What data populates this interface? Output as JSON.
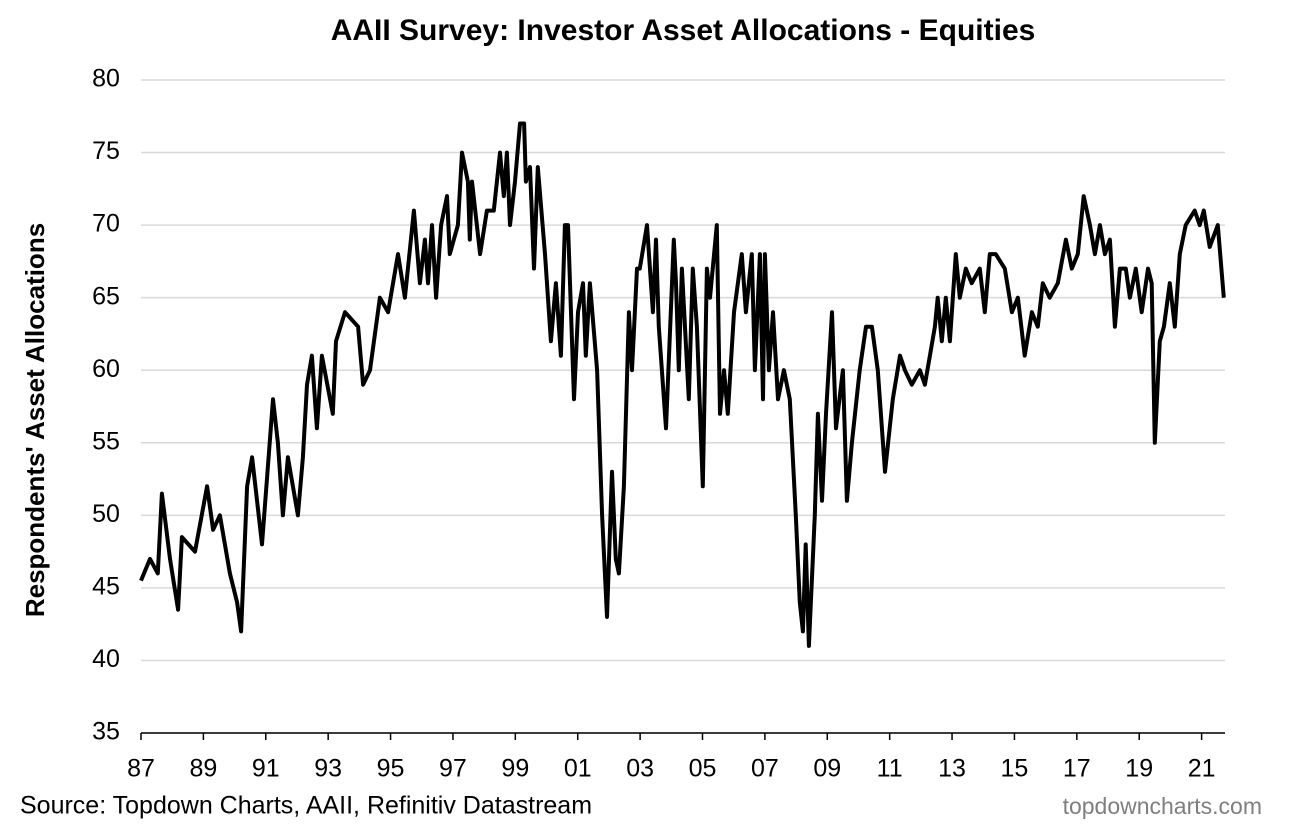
{
  "chart_data": {
    "type": "line",
    "title": "AAII Survey: Investor Asset Allocations - Equities",
    "ylabel": "Respondents' Asset Allocations",
    "source": "Source: Topdown Charts, AAII, Refinitiv Datastream",
    "watermark": "topdowncharts.com",
    "color": "#000000",
    "grid": true,
    "xlim": [
      1987,
      2021.75
    ],
    "ylim": [
      35,
      80
    ],
    "yticks": [
      35,
      40,
      45,
      50,
      55,
      60,
      65,
      70,
      75,
      80
    ],
    "xticks": [
      {
        "value": 1987,
        "label": "87"
      },
      {
        "value": 1989,
        "label": "89"
      },
      {
        "value": 1991,
        "label": "91"
      },
      {
        "value": 1993,
        "label": "93"
      },
      {
        "value": 1995,
        "label": "95"
      },
      {
        "value": 1997,
        "label": "97"
      },
      {
        "value": 1999,
        "label": "99"
      },
      {
        "value": 2001,
        "label": "01"
      },
      {
        "value": 2003,
        "label": "03"
      },
      {
        "value": 2005,
        "label": "05"
      },
      {
        "value": 2007,
        "label": "07"
      },
      {
        "value": 2009,
        "label": "09"
      },
      {
        "value": 2011,
        "label": "11"
      },
      {
        "value": 2013,
        "label": "13"
      },
      {
        "value": 2015,
        "label": "15"
      },
      {
        "value": 2017,
        "label": "17"
      },
      {
        "value": 2019,
        "label": "19"
      },
      {
        "value": 2021,
        "label": "21"
      }
    ],
    "x": [
      1987.0,
      1987.29,
      1987.54,
      1987.67,
      1987.93,
      1988.19,
      1988.31,
      1988.73,
      1989.12,
      1989.31,
      1989.53,
      1989.85,
      1990.08,
      1990.21,
      1990.4,
      1990.56,
      1990.88,
      1991.23,
      1991.39,
      1991.55,
      1991.71,
      1992.03,
      1992.19,
      1992.32,
      1992.48,
      1992.64,
      1992.8,
      1993.15,
      1993.25,
      1993.54,
      1993.96,
      1994.12,
      1994.34,
      1994.66,
      1994.92,
      1995.24,
      1995.46,
      1995.75,
      1995.94,
      1996.1,
      1996.2,
      1996.33,
      1996.46,
      1996.62,
      1996.81,
      1996.9,
      1997.16,
      1997.29,
      1997.48,
      1997.54,
      1997.61,
      1997.87,
      1998.09,
      1998.31,
      1998.51,
      1998.63,
      1998.73,
      1998.83,
      1998.99,
      1999.15,
      1999.28,
      1999.34,
      1999.47,
      1999.6,
      1999.72,
      1999.95,
      2000.14,
      2000.3,
      2000.46,
      2000.59,
      2000.69,
      2000.88,
      2001.01,
      2001.17,
      2001.26,
      2001.39,
      2001.62,
      2001.78,
      2001.94,
      2002.1,
      2002.22,
      2002.32,
      2002.48,
      2002.64,
      2002.74,
      2002.9,
      2002.99,
      2003.22,
      2003.41,
      2003.51,
      2003.6,
      2003.83,
      2004.08,
      2004.15,
      2004.24,
      2004.34,
      2004.56,
      2004.69,
      2004.82,
      2005.01,
      2005.14,
      2005.24,
      2005.46,
      2005.56,
      2005.69,
      2005.81,
      2006.01,
      2006.26,
      2006.39,
      2006.58,
      2006.68,
      2006.84,
      2006.94,
      2007.0,
      2007.13,
      2007.26,
      2007.42,
      2007.61,
      2007.8,
      2007.99,
      2008.12,
      2008.22,
      2008.31,
      2008.41,
      2008.6,
      2008.7,
      2008.83,
      2008.96,
      2009.15,
      2009.28,
      2009.5,
      2009.63,
      2009.79,
      2010.04,
      2010.24,
      2010.43,
      2010.62,
      2010.85,
      2011.1,
      2011.33,
      2011.49,
      2011.71,
      2011.97,
      2012.13,
      2012.29,
      2012.45,
      2012.54,
      2012.67,
      2012.8,
      2012.93,
      2013.12,
      2013.25,
      2013.44,
      2013.63,
      2013.89,
      2014.05,
      2014.21,
      2014.4,
      2014.69,
      2014.92,
      2015.11,
      2015.33,
      2015.56,
      2015.75,
      2015.91,
      2016.13,
      2016.39,
      2016.65,
      2016.84,
      2017.03,
      2017.22,
      2017.42,
      2017.58,
      2017.74,
      2017.9,
      2018.06,
      2018.22,
      2018.38,
      2018.57,
      2018.7,
      2018.89,
      2019.08,
      2019.28,
      2019.4,
      2019.5,
      2019.66,
      2019.79,
      2019.98,
      2020.14,
      2020.3,
      2020.49,
      2020.78,
      2020.94,
      2021.07,
      2021.26,
      2021.52,
      2021.71
    ],
    "values": [
      45.5,
      47,
      46,
      51.5,
      47,
      43.5,
      48.5,
      47.5,
      52,
      49,
      50,
      46,
      44,
      42,
      52,
      54,
      48,
      58,
      55,
      50,
      54,
      50,
      54,
      59,
      61,
      56,
      61,
      57,
      62,
      64,
      63,
      59,
      60,
      65,
      64,
      68,
      65,
      71,
      66,
      69,
      66,
      70,
      65,
      70,
      72,
      68,
      70,
      75,
      73,
      69,
      73,
      68,
      71,
      71,
      75,
      72,
      75,
      70,
      73,
      77,
      77,
      73,
      74,
      67,
      74,
      68,
      62,
      66,
      61,
      70,
      70,
      58,
      64,
      66,
      61,
      66,
      60,
      50,
      43,
      53,
      47,
      46,
      52,
      64,
      60,
      67,
      67,
      70,
      64,
      69,
      63,
      56,
      69,
      66,
      60,
      67,
      58,
      67,
      63,
      52,
      67,
      65,
      70,
      57,
      60,
      57,
      64,
      68,
      64,
      68,
      60,
      68,
      58,
      68,
      60,
      64,
      58,
      60,
      58,
      50,
      44,
      42,
      48,
      41,
      50,
      57,
      51,
      57,
      64,
      56,
      60,
      51,
      55,
      60,
      63,
      63,
      60,
      53,
      58,
      61,
      60,
      59,
      60,
      59,
      61,
      63,
      65,
      62,
      65,
      62,
      68,
      65,
      67,
      66,
      67,
      64,
      68,
      68,
      67,
      64,
      65,
      61,
      64,
      63,
      66,
      65,
      66,
      69,
      67,
      68,
      72,
      70,
      68,
      70,
      68,
      69,
      63,
      67,
      67,
      65,
      67,
      64,
      67,
      66,
      55,
      62,
      63,
      66,
      63,
      68,
      70,
      71,
      70,
      71,
      68.5,
      70,
      65
    ]
  }
}
